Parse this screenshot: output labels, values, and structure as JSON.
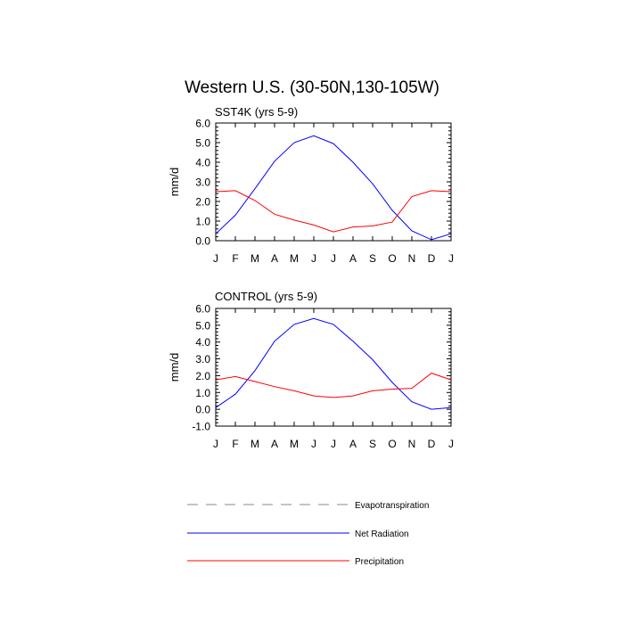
{
  "figure": {
    "title": "Western U.S. (30-50N,130-105W)"
  },
  "chart_data": [
    {
      "type": "line",
      "title": "SST4K (yrs 5-9)",
      "ylabel": "mm/d",
      "xlabel": "",
      "ylim": [
        0.0,
        6.0
      ],
      "yticks": [
        "0.0",
        "1.0",
        "2.0",
        "3.0",
        "4.0",
        "5.0",
        "6.0"
      ],
      "categories": [
        "J",
        "F",
        "M",
        "A",
        "M",
        "J",
        "J",
        "A",
        "S",
        "O",
        "N",
        "D",
        "J"
      ],
      "series": [
        {
          "name": "Net Radiation",
          "color": "#0000ff",
          "values": [
            0.35,
            1.3,
            2.65,
            4.05,
            5.0,
            5.35,
            4.95,
            4.0,
            2.9,
            1.55,
            0.5,
            0.05,
            0.35
          ]
        },
        {
          "name": "Precipitation",
          "color": "#ff0000",
          "values": [
            2.5,
            2.55,
            2.05,
            1.35,
            1.05,
            0.8,
            0.45,
            0.7,
            0.75,
            0.95,
            2.25,
            2.55,
            2.5
          ]
        }
      ]
    },
    {
      "type": "line",
      "title": "CONTROL (yrs 5-9)",
      "ylabel": "mm/d",
      "xlabel": "",
      "ylim": [
        -1.0,
        6.0
      ],
      "yticks": [
        "-1.0",
        "0.0",
        "1.0",
        "2.0",
        "3.0",
        "4.0",
        "5.0",
        "6.0"
      ],
      "categories": [
        "J",
        "F",
        "M",
        "A",
        "M",
        "J",
        "J",
        "A",
        "S",
        "O",
        "N",
        "D",
        "J"
      ],
      "series": [
        {
          "name": "Net Radiation",
          "color": "#0000ff",
          "values": [
            0.1,
            0.9,
            2.3,
            4.05,
            5.05,
            5.4,
            5.05,
            4.05,
            2.95,
            1.6,
            0.45,
            0.0,
            0.1
          ]
        },
        {
          "name": "Precipitation",
          "color": "#ff0000",
          "values": [
            1.75,
            1.95,
            1.65,
            1.35,
            1.1,
            0.8,
            0.7,
            0.8,
            1.1,
            1.2,
            1.25,
            2.15,
            1.75
          ]
        }
      ]
    }
  ],
  "legend": {
    "placement": "bottom",
    "items": [
      {
        "label": "Evapotranspiration",
        "color": "#888888",
        "dash": true
      },
      {
        "label": "Net Radiation",
        "color": "#0000ff",
        "dash": false
      },
      {
        "label": "Precipitation",
        "color": "#ff0000",
        "dash": false
      }
    ]
  }
}
